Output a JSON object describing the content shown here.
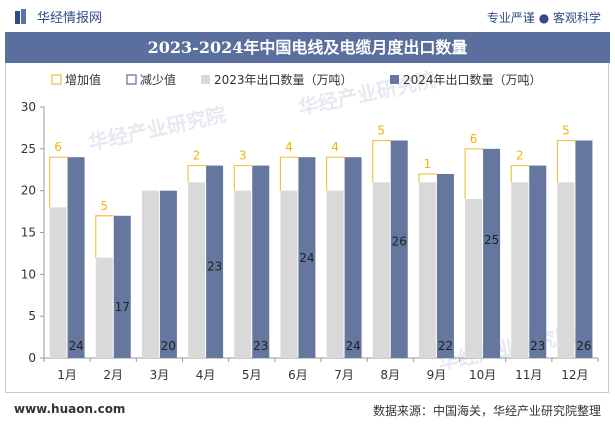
{
  "header": {
    "brand": "华经情报网",
    "tagline": "专业严谨 ● 客观科学"
  },
  "footer": {
    "website": "www.huaon.com",
    "source": "数据来源：中国海关，华经产业研究院整理"
  },
  "watermark": "华经产业研究院",
  "colors": {
    "bar2023": "#d9d9d9",
    "bar2024": "#66779f",
    "increase": "#f2c24f",
    "decrease": "#66779f",
    "increase_label": "#f0b400",
    "title_band": "#5a6f9e"
  },
  "chart_data": {
    "type": "bar",
    "title": "2023-2024年中国电线及电缆月度出口数量",
    "categories": [
      "1月",
      "2月",
      "3月",
      "4月",
      "5月",
      "6月",
      "7月",
      "8月",
      "9月",
      "10月",
      "11月",
      "12月"
    ],
    "series": [
      {
        "name": "2023年出口数量（万吨）",
        "values": [
          18,
          12,
          20,
          21,
          20,
          20,
          20,
          21,
          21,
          19,
          21,
          21
        ]
      },
      {
        "name": "2024年出口数量（万吨）",
        "values": [
          24,
          17,
          20,
          23,
          23,
          24,
          24,
          26,
          22,
          25,
          23,
          26
        ]
      }
    ],
    "change_series": [
      {
        "name": "增加值",
        "values": [
          6,
          5,
          null,
          2,
          3,
          4,
          4,
          5,
          1,
          6,
          2,
          5
        ]
      },
      {
        "name": "减少值",
        "values": [
          null,
          null,
          null,
          null,
          null,
          null,
          null,
          null,
          null,
          null,
          null,
          null
        ]
      }
    ],
    "ylim": [
      0,
      30
    ],
    "yticks": [
      0,
      5,
      10,
      15,
      20,
      25,
      30
    ],
    "grid": false,
    "legend_position": "top"
  }
}
